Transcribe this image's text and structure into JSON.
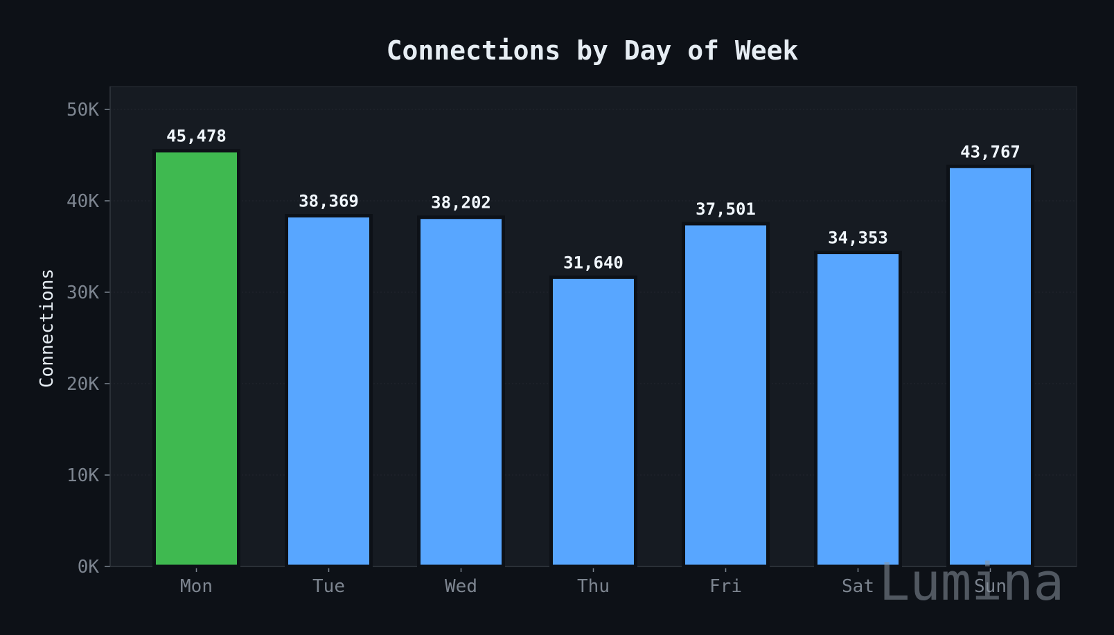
{
  "chart_data": {
    "type": "bar",
    "title": "Connections by Day of Week",
    "xlabel": "",
    "ylabel": "Connections",
    "categories": [
      "Mon",
      "Tue",
      "Wed",
      "Thu",
      "Fri",
      "Sat",
      "Sun"
    ],
    "values": [
      45478,
      38369,
      38202,
      31640,
      37501,
      34353,
      43767
    ],
    "value_labels": [
      "45,478",
      "38,369",
      "38,202",
      "31,640",
      "37,501",
      "34,353",
      "43,767"
    ],
    "ylim": [
      0,
      52500
    ],
    "yticks": [
      0,
      10000,
      20000,
      30000,
      40000,
      50000
    ],
    "ytick_labels": [
      "0K",
      "10K",
      "20K",
      "30K",
      "40K",
      "50K"
    ],
    "grid": true,
    "legend": "none",
    "highlight_index": 0
  },
  "colors": {
    "background": "#0d1117",
    "plot_background": "#161b22",
    "bar": "#58a6ff",
    "highlight_bar": "#3fb950",
    "bar_edge": "#0d1117"
  },
  "watermark": "Lumina"
}
